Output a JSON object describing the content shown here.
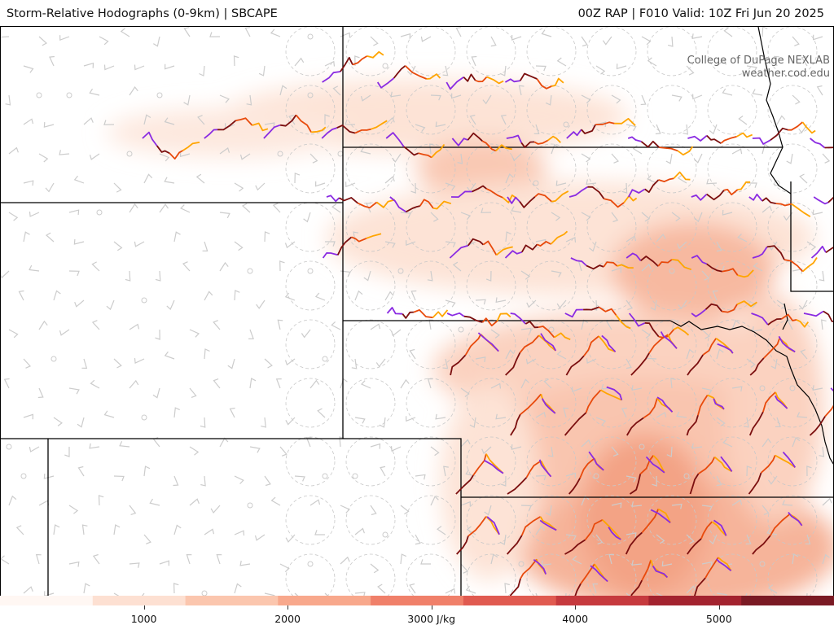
{
  "header": {
    "title": "Storm-Relative Hodographs (0-9km) | SBCAPE",
    "model_info": "00Z RAP | F010 Valid: 10Z Fri Jun 20 2025"
  },
  "credit": {
    "line1": "College of DuPage NEXLAB",
    "line2": "weather.cod.edu"
  },
  "colorbar": {
    "unit": "J/kg",
    "min": 0,
    "max": 5800,
    "ticks": [
      {
        "value": 1000,
        "label": "1000"
      },
      {
        "value": 2000,
        "label": "2000"
      },
      {
        "value": 3000,
        "label": "3000 J/kg"
      },
      {
        "value": 4000,
        "label": "4000"
      },
      {
        "value": 5000,
        "label": "5000"
      }
    ],
    "colors": [
      "#fff7f3",
      "#fde0d2",
      "#fbc6ae",
      "#f8a88c",
      "#f0806a",
      "#e05a50",
      "#c63a3e",
      "#a3232f",
      "#7a1a24"
    ]
  },
  "colors": {
    "hodo_low": "#7b0f0f",
    "hodo_mid1": "#e84a0c",
    "hodo_mid2": "#ffa500",
    "hodo_upper": "#8a2be2",
    "barb": "#cccccc",
    "border": "#000000"
  }
}
